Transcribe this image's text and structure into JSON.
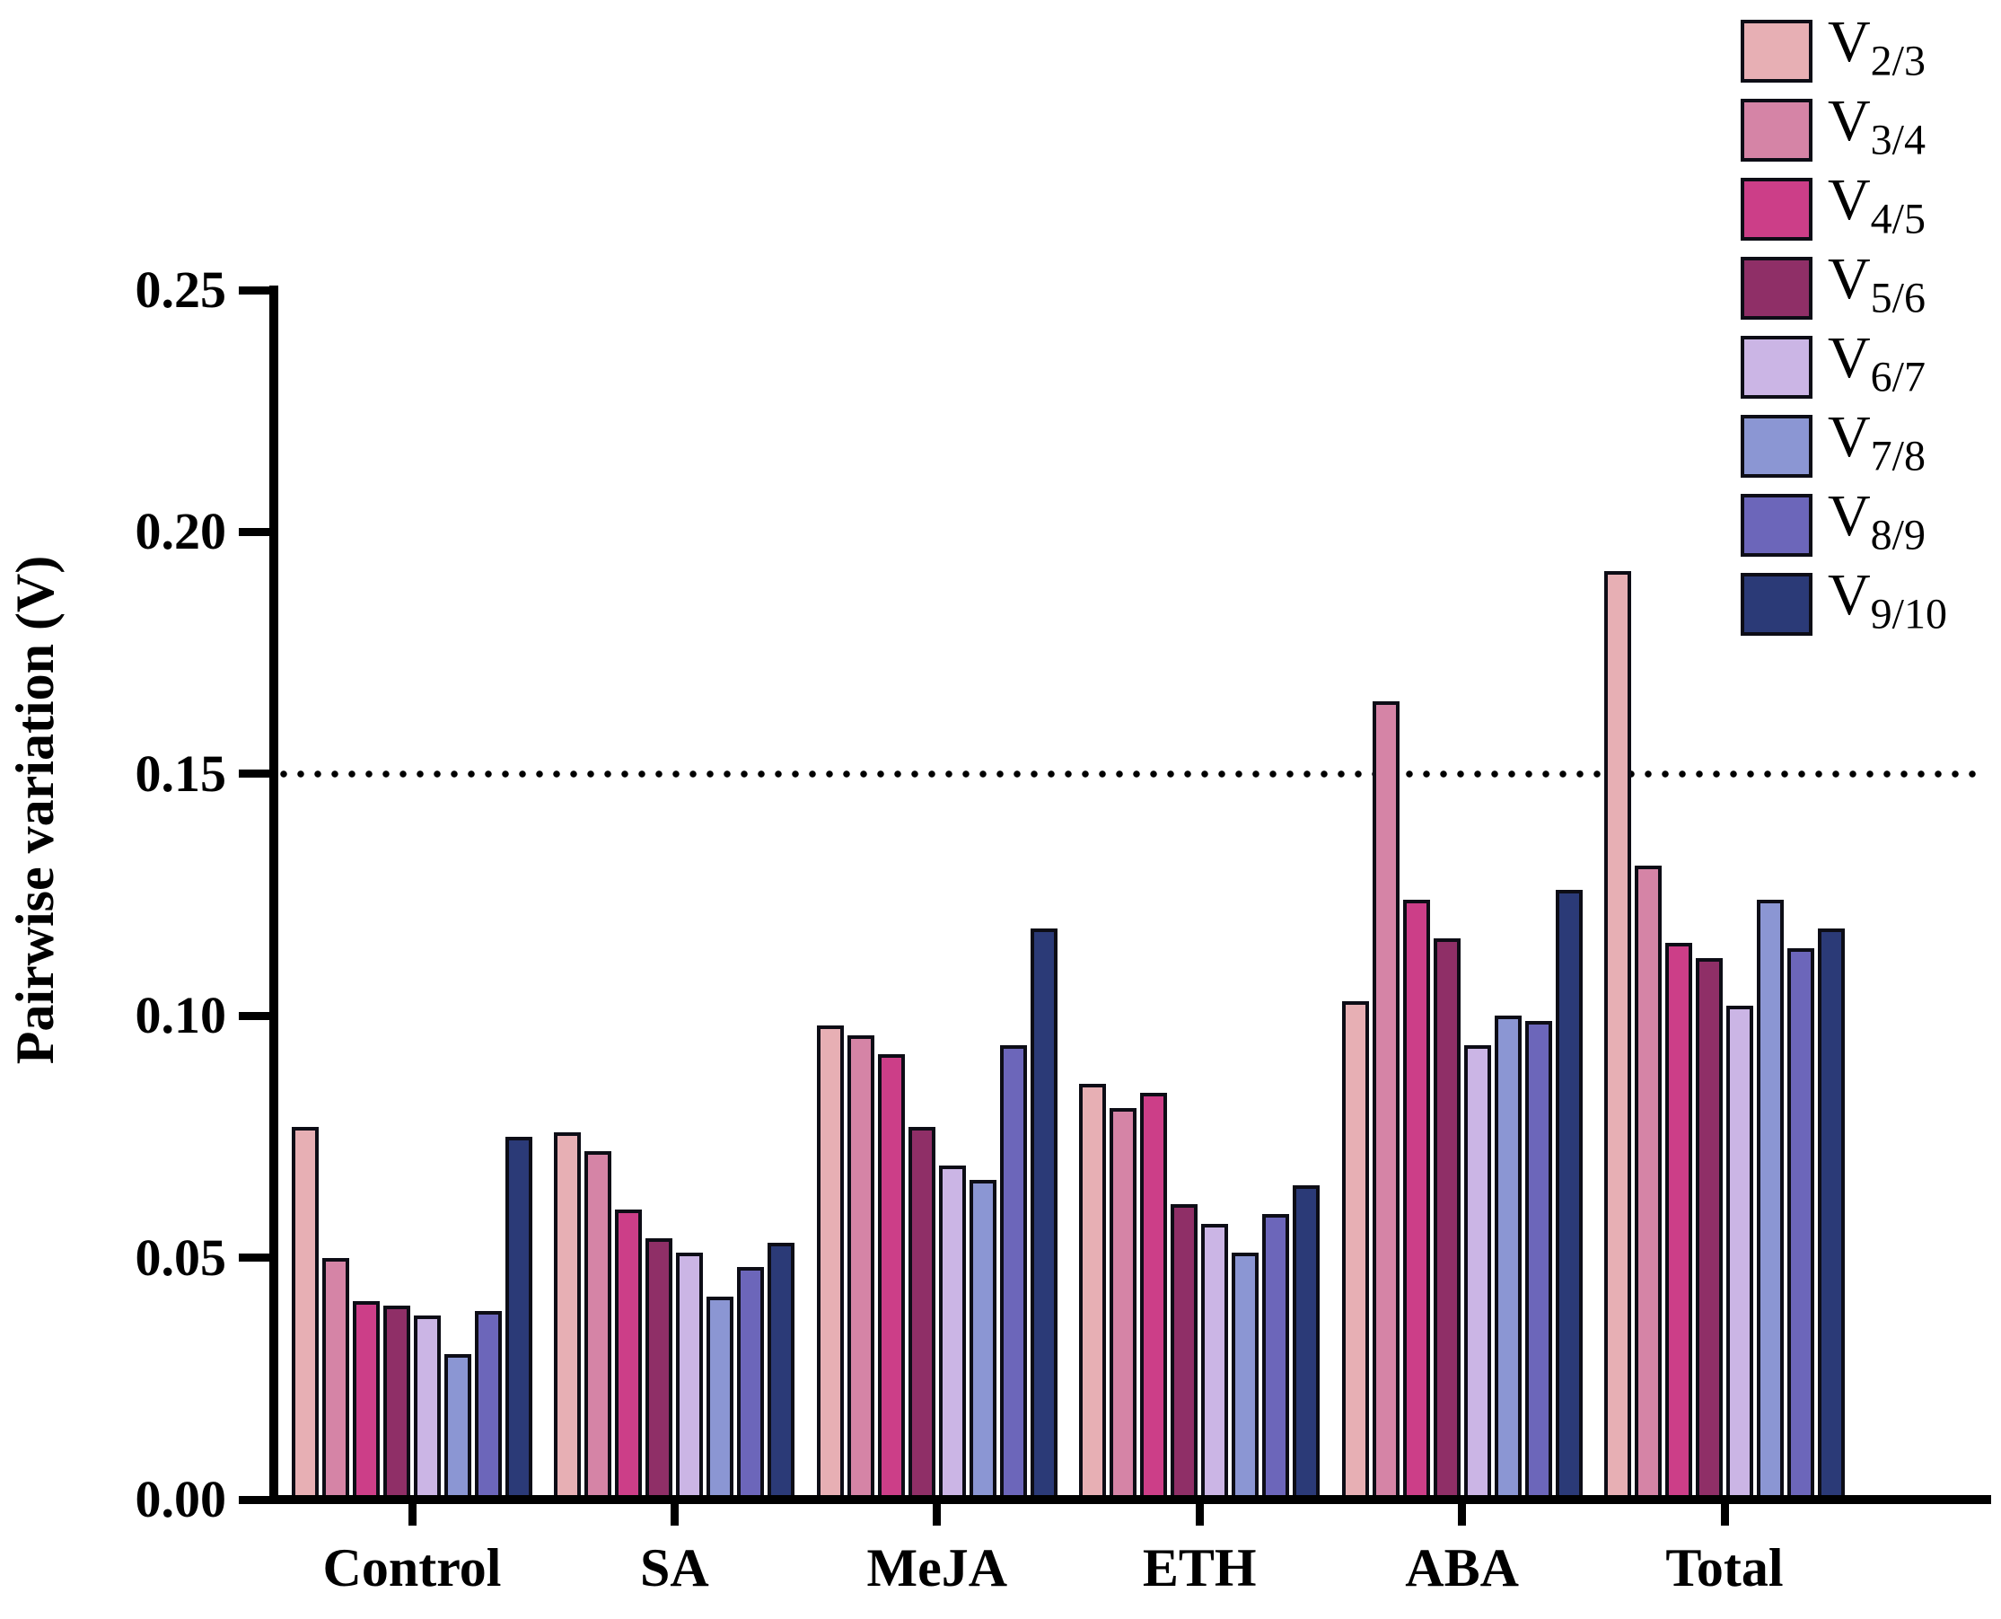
{
  "chart_data": {
    "type": "bar",
    "title": "",
    "xlabel": "",
    "ylabel": "Pairwise variation (V)",
    "ylim": [
      0,
      0.25
    ],
    "ytick_labels": [
      "0.00",
      "0.05",
      "0.10",
      "0.15",
      "0.20",
      "0.25"
    ],
    "yticks": [
      0.0,
      0.05,
      0.1,
      0.15,
      0.2,
      0.25
    ],
    "grid": false,
    "legend_position": "top-right",
    "reference_line": {
      "value": 0.15,
      "style": "dotted",
      "color": "#000000"
    },
    "categories": [
      "Control",
      "SA",
      "MeJA",
      "ETH",
      "ABA",
      "Total"
    ],
    "series": [
      {
        "name": "V2/3",
        "label_base": "V",
        "label_sub": "2/3",
        "color": "#E7AFB4",
        "values": [
          0.077,
          0.076,
          0.098,
          0.086,
          0.103,
          0.192
        ]
      },
      {
        "name": "V3/4",
        "label_base": "V",
        "label_sub": "3/4",
        "color": "#D584A6",
        "values": [
          0.05,
          0.072,
          0.096,
          0.081,
          0.165,
          0.131
        ]
      },
      {
        "name": "V4/5",
        "label_base": "V",
        "label_sub": "4/5",
        "color": "#CC3E88",
        "values": [
          0.041,
          0.06,
          0.092,
          0.084,
          0.124,
          0.115
        ]
      },
      {
        "name": "V5/6",
        "label_base": "V",
        "label_sub": "5/6",
        "color": "#8F2F67",
        "values": [
          0.04,
          0.054,
          0.077,
          0.061,
          0.116,
          0.112
        ]
      },
      {
        "name": "V6/7",
        "label_base": "V",
        "label_sub": "6/7",
        "color": "#CBB5E5",
        "values": [
          0.038,
          0.051,
          0.069,
          0.057,
          0.094,
          0.102
        ]
      },
      {
        "name": "V7/8",
        "label_base": "V",
        "label_sub": "7/8",
        "color": "#8B96D3",
        "values": [
          0.03,
          0.042,
          0.066,
          0.051,
          0.1,
          0.124
        ]
      },
      {
        "name": "V8/9",
        "label_base": "V",
        "label_sub": "8/9",
        "color": "#6C66BA",
        "values": [
          0.039,
          0.048,
          0.094,
          0.059,
          0.099,
          0.114
        ]
      },
      {
        "name": "V9/10",
        "label_base": "V",
        "label_sub": "9/10",
        "color": "#2B3A77",
        "values": [
          0.075,
          0.053,
          0.118,
          0.065,
          0.126,
          0.118
        ]
      }
    ],
    "bar_outline_color": "#0D0D16"
  }
}
